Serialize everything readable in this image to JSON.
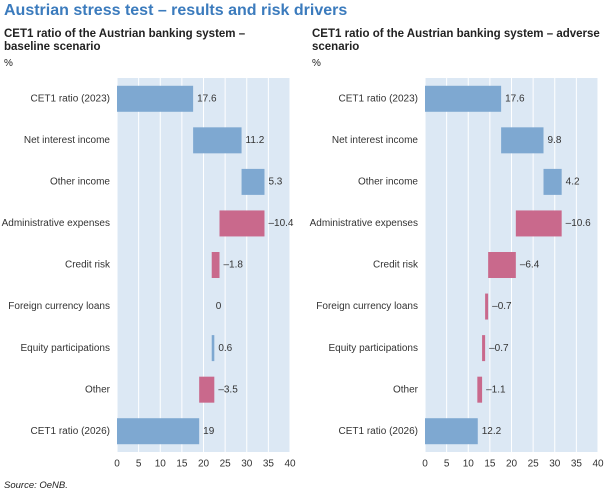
{
  "title": "Austrian stress test – results and risk drivers",
  "source": "Source: OeNB.",
  "chart_data": [
    {
      "type": "waterfall",
      "title": "CET1 ratio of the Austrian banking system – baseline scenario",
      "unit": "%",
      "categories": [
        "CET1 ratio (2023)",
        "Net interest income",
        "Other income",
        "Administrative expenses",
        "Credit risk",
        "Foreign currency loans",
        "Equity participations",
        "Other",
        "CET1 ratio (2026)"
      ],
      "values": [
        17.6,
        11.2,
        5.3,
        -10.4,
        -1.8,
        0,
        0.6,
        -3.5,
        19
      ],
      "value_labels": [
        "17.6",
        "11.2",
        "5.3",
        "–10.4",
        "–1.8",
        "0",
        "0.6",
        "–3.5",
        "19"
      ],
      "color": "#7ea8d1",
      "negative_color": "#c9698c",
      "xlim": [
        0,
        40
      ],
      "xticks": [
        0,
        5,
        10,
        15,
        20,
        25,
        30,
        35,
        40
      ],
      "grid": true
    },
    {
      "type": "waterfall",
      "title": "CET1 ratio of the Austrian banking system – adverse scenario",
      "unit": "%",
      "categories": [
        "CET1 ratio (2023)",
        "Net interest income",
        "Other income",
        "Administrative expenses",
        "Credit risk",
        "Foreign currency loans",
        "Equity participations",
        "Other",
        "CET1 ratio (2026)"
      ],
      "values": [
        17.6,
        9.8,
        4.2,
        -10.6,
        -6.4,
        -0.7,
        -0.7,
        -1.1,
        12.2
      ],
      "value_labels": [
        "17.6",
        "9.8",
        "4.2",
        "–10.6",
        "–6.4",
        "–0.7",
        "–0.7",
        "–1.1",
        "12.2"
      ],
      "color": "#7ea8d1",
      "negative_color": "#c9698c",
      "xlim": [
        0,
        40
      ],
      "xticks": [
        0,
        5,
        10,
        15,
        20,
        25,
        30,
        35,
        40
      ],
      "grid": true
    }
  ]
}
